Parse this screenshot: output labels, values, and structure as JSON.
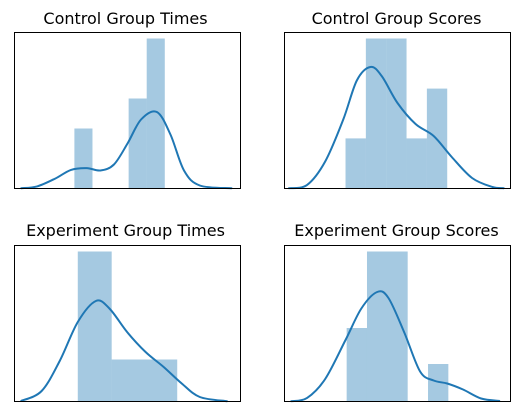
{
  "chart_data": [
    {
      "type": "bar",
      "title": "Control Group Times",
      "xlabel": "",
      "ylabel": "",
      "xlim": [
        0,
        10
      ],
      "ylim": [
        0,
        5.2
      ],
      "axes_ticks": "hidden",
      "grid": false,
      "bars": [
        {
          "x0": 2.65,
          "x1": 3.45,
          "h": 2.0
        },
        {
          "x0": 5.05,
          "x1": 5.85,
          "h": 3.0
        },
        {
          "x0": 5.85,
          "x1": 6.65,
          "h": 5.0
        }
      ],
      "kde": [
        [
          0.3,
          0.01
        ],
        [
          1.0,
          0.07
        ],
        [
          1.8,
          0.33
        ],
        [
          2.5,
          0.62
        ],
        [
          3.2,
          0.68
        ],
        [
          3.8,
          0.6
        ],
        [
          4.4,
          0.8
        ],
        [
          5.0,
          1.5
        ],
        [
          5.6,
          2.3
        ],
        [
          6.3,
          2.55
        ],
        [
          6.9,
          1.8
        ],
        [
          7.5,
          0.6
        ],
        [
          8.2,
          0.1
        ],
        [
          9.6,
          0.01
        ]
      ]
    },
    {
      "type": "bar",
      "title": "Control Group Scores",
      "xlabel": "",
      "ylabel": "",
      "xlim": [
        0,
        10
      ],
      "ylim": [
        0,
        5.2
      ],
      "axes_ticks": "hidden",
      "grid": false,
      "bars": [
        {
          "x0": 2.7,
          "x1": 3.6,
          "h": 1.67
        },
        {
          "x0": 3.6,
          "x1": 4.5,
          "h": 5.0
        },
        {
          "x0": 4.5,
          "x1": 5.4,
          "h": 5.0
        },
        {
          "x0": 5.4,
          "x1": 6.3,
          "h": 1.67
        },
        {
          "x0": 6.3,
          "x1": 7.2,
          "h": 3.33
        }
      ],
      "kde": [
        [
          0.2,
          0.01
        ],
        [
          1.0,
          0.12
        ],
        [
          1.8,
          0.9
        ],
        [
          2.6,
          2.3
        ],
        [
          3.2,
          3.6
        ],
        [
          3.8,
          4.05
        ],
        [
          4.3,
          3.75
        ],
        [
          5.0,
          2.85
        ],
        [
          5.8,
          2.15
        ],
        [
          6.6,
          1.75
        ],
        [
          7.4,
          1.05
        ],
        [
          8.3,
          0.35
        ],
        [
          9.2,
          0.05
        ],
        [
          9.7,
          0.01
        ]
      ]
    },
    {
      "type": "bar",
      "title": "Experiment Group Times",
      "xlabel": "",
      "ylabel": "",
      "xlim": [
        0,
        10
      ],
      "ylim": [
        0,
        5.2
      ],
      "axes_ticks": "hidden",
      "grid": false,
      "bars": [
        {
          "x0": 2.8,
          "x1": 4.3,
          "h": 5.0
        },
        {
          "x0": 4.3,
          "x1": 7.2,
          "h": 1.4
        }
      ],
      "kde": [
        [
          0.3,
          0.02
        ],
        [
          1.2,
          0.35
        ],
        [
          2.0,
          1.35
        ],
        [
          2.8,
          2.65
        ],
        [
          3.6,
          3.35
        ],
        [
          4.2,
          3.1
        ],
        [
          5.0,
          2.3
        ],
        [
          5.8,
          1.65
        ],
        [
          6.6,
          1.15
        ],
        [
          7.4,
          0.6
        ],
        [
          8.2,
          0.15
        ],
        [
          9.4,
          0.01
        ]
      ]
    },
    {
      "type": "bar",
      "title": "Experiment Group Scores",
      "xlabel": "",
      "ylabel": "",
      "xlim": [
        0,
        10
      ],
      "ylim": [
        0,
        5.2
      ],
      "axes_ticks": "hidden",
      "grid": false,
      "bars": [
        {
          "x0": 2.75,
          "x1": 3.65,
          "h": 2.45
        },
        {
          "x0": 3.65,
          "x1": 5.45,
          "h": 5.0
        },
        {
          "x0": 6.35,
          "x1": 7.25,
          "h": 1.25
        }
      ],
      "kde": [
        [
          0.3,
          0.01
        ],
        [
          1.0,
          0.12
        ],
        [
          1.8,
          0.75
        ],
        [
          2.7,
          2.05
        ],
        [
          3.4,
          3.1
        ],
        [
          4.1,
          3.65
        ],
        [
          4.6,
          3.45
        ],
        [
          5.3,
          2.3
        ],
        [
          6.0,
          1.0
        ],
        [
          6.6,
          0.7
        ],
        [
          7.2,
          0.6
        ],
        [
          7.9,
          0.4
        ],
        [
          8.7,
          0.1
        ],
        [
          9.5,
          0.02
        ]
      ]
    }
  ]
}
